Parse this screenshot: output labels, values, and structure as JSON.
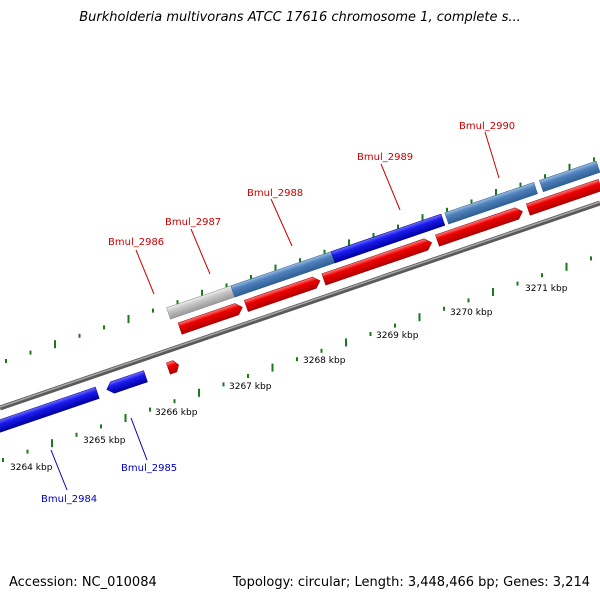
{
  "header": {
    "title": "Burkholderia multivorans ATCC 17616 chromosome 1, complete s..."
  },
  "footer": {
    "accession": "Accession: NC_010084",
    "summary": "Topology: circular; Length: 3,448,466 bp; Genes: 3,214"
  },
  "colors": {
    "forward_gene": "#ee0000",
    "reverse_gene": "#1a1aee",
    "forward_label": "#cc0000",
    "reverse_label": "#0000bb",
    "steelblue_gene": "#4f81bd",
    "grey_gene": "#c0c0c0",
    "backbone": "#808080",
    "tick": "#1a7a1a"
  },
  "scale": {
    "unit": "kbp",
    "ticks": [
      "3264 kbp",
      "3265 kbp",
      "3266 kbp",
      "3267 kbp",
      "3268 kbp",
      "3269 kbp",
      "3270 kbp",
      "3271 kbp"
    ]
  },
  "genes": {
    "forward_labels": [
      "Bmul_2986",
      "Bmul_2987",
      "Bmul_2988",
      "Bmul_2989",
      "Bmul_2990"
    ],
    "reverse_labels": [
      "Bmul_2985",
      "Bmul_2984"
    ]
  }
}
